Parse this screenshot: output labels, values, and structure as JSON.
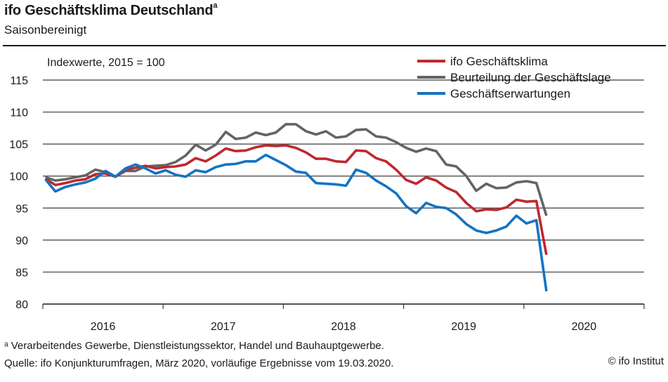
{
  "header": {
    "title": "ifo Geschäftsklima Deutschland",
    "title_superscript": "a",
    "subtitle": "Saisonbereinigt"
  },
  "footer": {
    "footnote": "ᵃ Verarbeitendes  Gewerbe,  Dienstleistungssektor,  Handel und Bauhauptgewerbe.",
    "source": "Quelle:  ifo Konjunkturumfragen,  März 2020,  vorläufige Ergebnisse  vom 19.03.2020.",
    "copyright": "© ifo Institut"
  },
  "chart_data": {
    "type": "line",
    "title": "ifo Geschäftsklima Deutschland",
    "subtitle": "Saisonbereinigt",
    "ylabel": "Indexwerte, 2015 = 100",
    "xlabel": "",
    "ylim": [
      80,
      115
    ],
    "yticks": [
      80,
      85,
      90,
      95,
      100,
      105,
      110,
      115
    ],
    "x_categories": [
      "2016",
      "2017",
      "2018",
      "2019",
      "2020"
    ],
    "x_start": "2016-01",
    "x_end": "2020-03",
    "frequency": "monthly",
    "grid": true,
    "legend_position": "top-right",
    "series": [
      {
        "name": "ifo Geschäftsklima",
        "color": "#c0282d",
        "values": [
          99.6,
          98.6,
          98.9,
          99.3,
          99.5,
          100.3,
          100.4,
          99.9,
          101.0,
          101.3,
          101.6,
          101.2,
          101.4,
          101.5,
          101.8,
          102.8,
          102.3,
          103.2,
          104.3,
          103.9,
          104.0,
          104.5,
          104.8,
          104.7,
          104.8,
          104.4,
          103.7,
          102.7,
          102.7,
          102.3,
          102.2,
          104.0,
          103.9,
          102.8,
          102.3,
          101.0,
          99.4,
          98.8,
          99.8,
          99.3,
          98.2,
          97.5,
          95.8,
          94.5,
          94.8,
          94.7,
          95.1,
          96.3,
          96.0,
          96.1,
          87.7
        ]
      },
      {
        "name": "Beurteilung der Geschäftslage",
        "color": "#646464",
        "values": [
          99.8,
          99.3,
          99.5,
          99.8,
          100.1,
          101.0,
          100.6,
          99.9,
          100.8,
          100.8,
          101.5,
          101.6,
          101.7,
          102.2,
          103.2,
          104.9,
          104.0,
          104.9,
          106.9,
          105.8,
          106.0,
          106.8,
          106.4,
          106.8,
          108.1,
          108.1,
          107.0,
          106.5,
          107.0,
          106.0,
          106.2,
          107.2,
          107.3,
          106.2,
          106.0,
          105.3,
          104.4,
          103.8,
          104.3,
          103.9,
          101.8,
          101.5,
          100.0,
          97.7,
          98.8,
          98.1,
          98.2,
          99.0,
          99.2,
          98.9,
          93.8
        ]
      },
      {
        "name": "Geschäftserwartungen",
        "color": "#1473c3",
        "values": [
          99.5,
          97.6,
          98.3,
          98.7,
          99.0,
          99.6,
          100.8,
          99.9,
          101.2,
          101.8,
          101.2,
          100.4,
          100.9,
          100.2,
          99.9,
          100.9,
          100.6,
          101.4,
          101.8,
          101.9,
          102.3,
          102.3,
          103.3,
          102.5,
          101.7,
          100.7,
          100.5,
          98.9,
          98.8,
          98.7,
          98.5,
          101.0,
          100.5,
          99.3,
          98.4,
          97.3,
          95.3,
          94.2,
          95.8,
          95.2,
          95.0,
          94.0,
          92.5,
          91.5,
          91.1,
          91.5,
          92.1,
          93.8,
          92.6,
          93.1,
          82.0
        ]
      }
    ]
  }
}
